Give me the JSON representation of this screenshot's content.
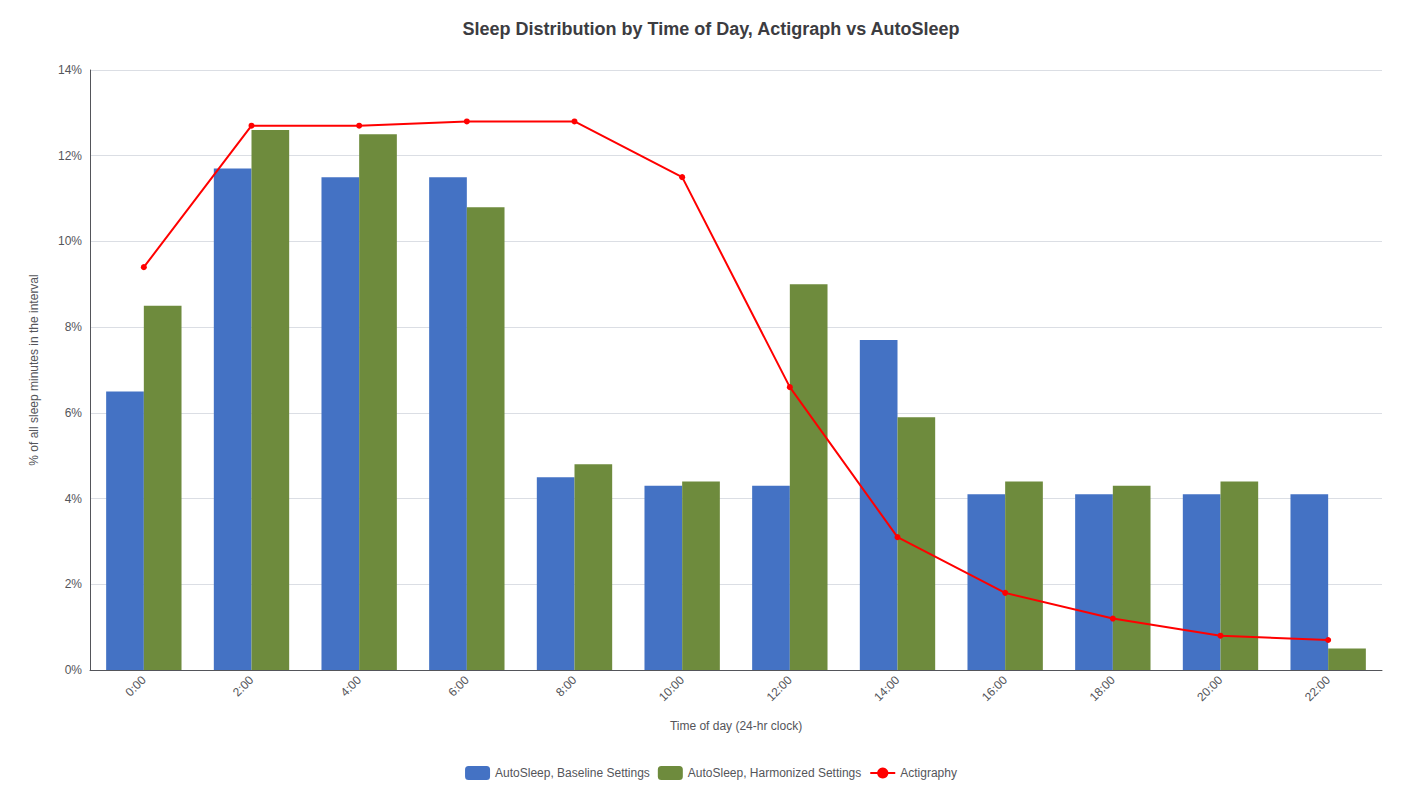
{
  "chart_data": {
    "type": "bar",
    "title": "Sleep Distribution by Time of Day, Actigraph vs AutoSleep",
    "xlabel": "Time of day (24-hr clock)",
    "ylabel": "% of all sleep minutes in the interval",
    "categories": [
      "0:00",
      "2:00",
      "4:00",
      "6:00",
      "8:00",
      "10:00",
      "12:00",
      "14:00",
      "16:00",
      "18:00",
      "20:00",
      "22:00"
    ],
    "series": [
      {
        "name": "AutoSleep, Baseline Settings",
        "type": "bar",
        "color": "#4472C4",
        "values": [
          6.5,
          11.7,
          11.5,
          11.5,
          4.5,
          4.3,
          4.3,
          7.7,
          4.1,
          4.1,
          4.1,
          4.1
        ]
      },
      {
        "name": "AutoSleep, Harmonized Settings",
        "type": "bar",
        "color": "#6E8B3D",
        "values": [
          8.5,
          12.6,
          12.5,
          10.8,
          4.8,
          4.4,
          9.0,
          5.9,
          4.4,
          4.3,
          4.4,
          0.5
        ]
      },
      {
        "name": "Actigraphy",
        "type": "line",
        "color": "#FF0000",
        "marker": "circle",
        "line_style": "solid",
        "values": [
          9.4,
          12.7,
          12.7,
          12.8,
          12.8,
          11.5,
          6.6,
          3.1,
          1.8,
          1.2,
          0.8,
          0.7
        ]
      }
    ],
    "ylim": [
      0,
      14
    ],
    "yticks": [
      {
        "value": 0,
        "label": "0%"
      },
      {
        "value": 2,
        "label": "2%"
      },
      {
        "value": 4,
        "label": "4%"
      },
      {
        "value": 6,
        "label": "6%"
      },
      {
        "value": 8,
        "label": "8%"
      },
      {
        "value": 10,
        "label": "10%"
      },
      {
        "value": 12,
        "label": "12%"
      },
      {
        "value": 14,
        "label": "14%"
      }
    ],
    "grid": true,
    "legend": "bottom"
  }
}
